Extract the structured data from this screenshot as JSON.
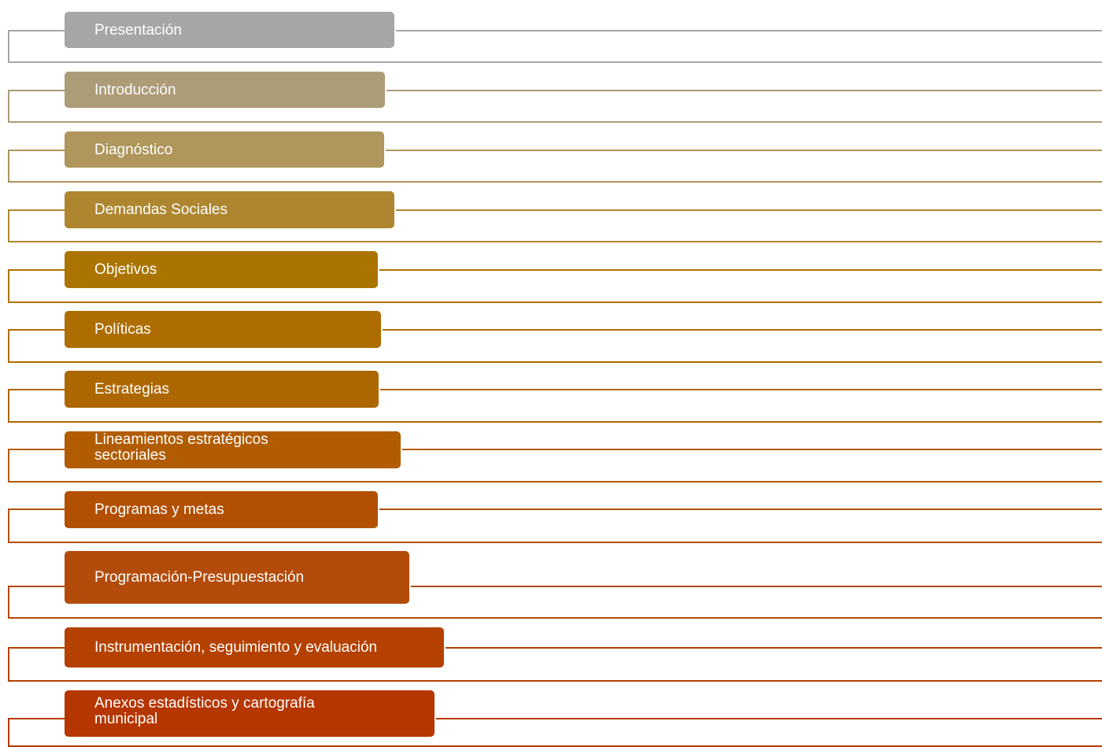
{
  "sections": [
    {
      "label": "Presentación",
      "color": "#a6a6a6"
    },
    {
      "label": "Introducción",
      "color": "#ad9c78"
    },
    {
      "label": "Diagnóstico",
      "color": "#ae965c"
    },
    {
      "label": "Demandas Sociales",
      "color": "#ae8630"
    },
    {
      "label": "Objetivos",
      "color": "#ab7400"
    },
    {
      "label": "Políticas",
      "color": "#ad6d00"
    },
    {
      "label": "Estrategias",
      "color": "#ad6700"
    },
    {
      "label": "Lineamientos estratégicos\nsectoriales",
      "color": "#b15c00"
    },
    {
      "label": "Programas y metas",
      "color": "#b24f00"
    },
    {
      "label": "Programación-Presupuestación",
      "color": "#b34b0a"
    },
    {
      "label": "Instrumentación, seguimiento y evaluación",
      "color": "#b54100"
    },
    {
      "label": "Anexos estadísticos y cartografía\nmunicipal",
      "color": "#b63600"
    }
  ]
}
